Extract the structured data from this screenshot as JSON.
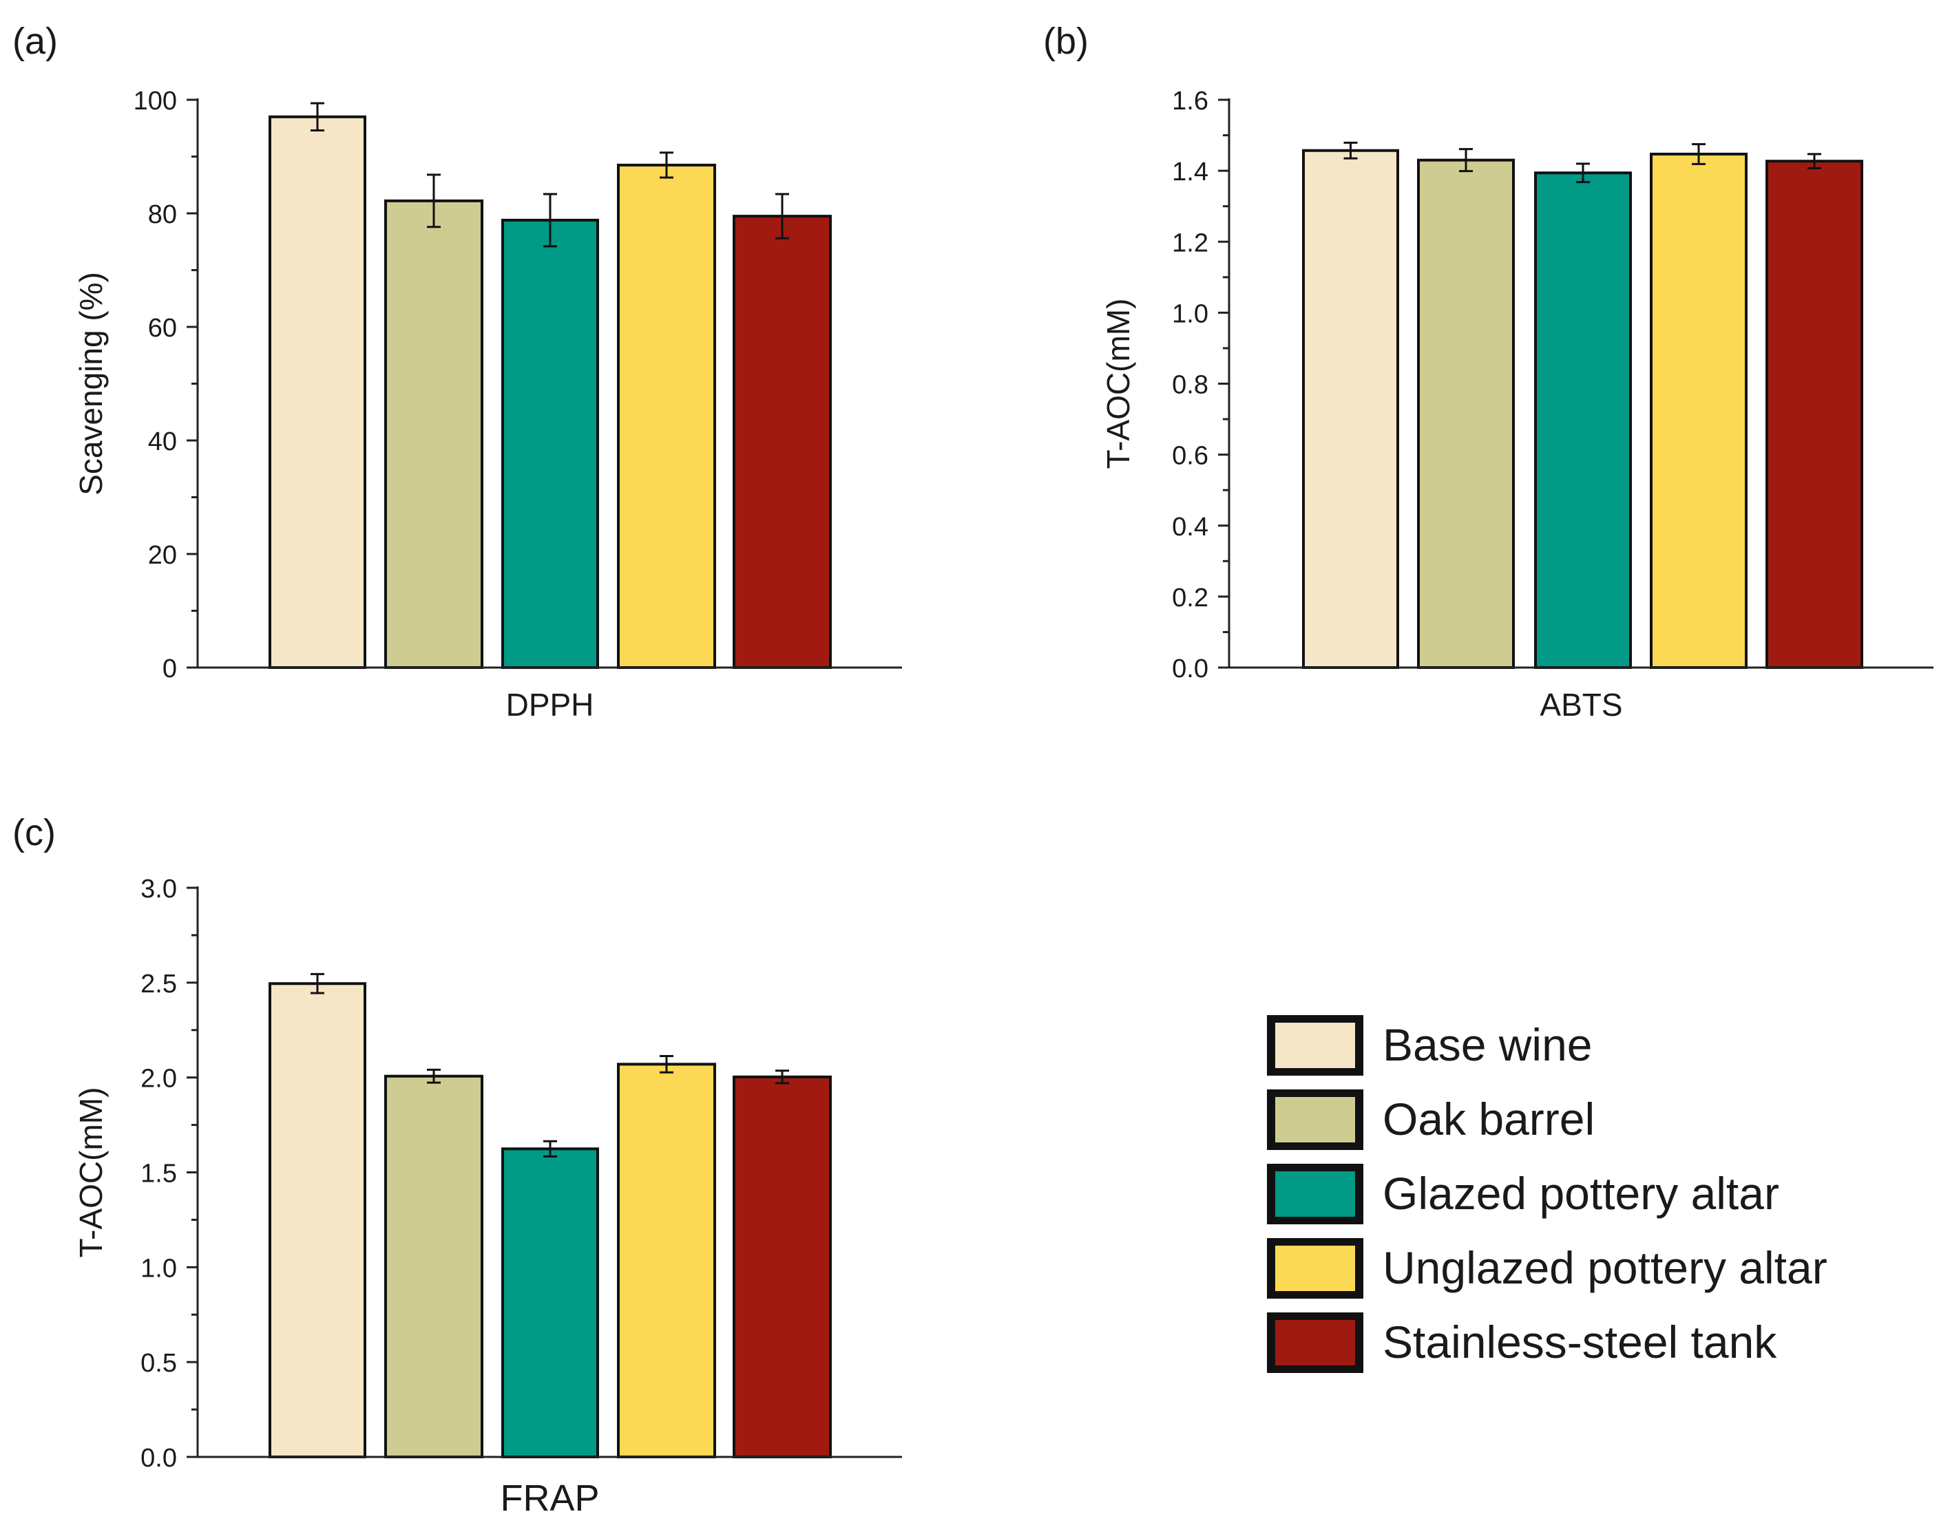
{
  "colors": {
    "axis": "#222222",
    "bar_outline": "#111111",
    "error_bar": "#111111"
  },
  "legend": {
    "placement": "bottom-right",
    "entries": [
      {
        "label": "Base wine",
        "color": "#f4e6c6"
      },
      {
        "label": "Oak barrel",
        "color": "#cfcc92"
      },
      {
        "label": "Glazed pottery altar",
        "color": "#009a86"
      },
      {
        "label": "Unglazed pottery altar",
        "color": "#fcd954"
      },
      {
        "label": "Stainless-steel tank",
        "color": "#a01a12"
      }
    ]
  },
  "chart_data": [
    {
      "type": "bar",
      "panel_label": "(a)",
      "title": "",
      "xlabel": "DPPH",
      "ylabel": "Scavenging (%)",
      "ylim": [
        0,
        100
      ],
      "yticks": [
        0,
        20,
        40,
        60,
        80,
        100
      ],
      "ytick_labels": [
        "0",
        "20",
        "40",
        "60",
        "80",
        "100"
      ],
      "grid": false,
      "categories": [
        "Base wine",
        "Oak barrel",
        "Glazed pottery altar",
        "Unglazed pottery altar",
        "Stainless-steel tank"
      ],
      "values": [
        97.0,
        82.2,
        78.8,
        88.5,
        79.5
      ],
      "errors": [
        2.4,
        4.6,
        4.6,
        2.2,
        3.9
      ]
    },
    {
      "type": "bar",
      "panel_label": "(b)",
      "title": "",
      "xlabel": "ABTS",
      "ylabel": "T-AOC(mM)",
      "ylim": [
        0,
        1.6
      ],
      "yticks": [
        0,
        0.2,
        0.4,
        0.6,
        0.8,
        1.0,
        1.2,
        1.4,
        1.6
      ],
      "ytick_labels": [
        "0.0",
        "0.2",
        "0.4",
        "0.6",
        "0.8",
        "1.0",
        "1.2",
        "1.4",
        "1.6"
      ],
      "grid": false,
      "categories": [
        "Base wine",
        "Oak barrel",
        "Glazed pottery altar",
        "Unglazed pottery altar",
        "Stainless-steel tank"
      ],
      "values": [
        1.457,
        1.43,
        1.394,
        1.447,
        1.427
      ],
      "errors": [
        0.022,
        0.031,
        0.026,
        0.028,
        0.02
      ]
    },
    {
      "type": "bar",
      "panel_label": "(c)",
      "title": "",
      "xlabel": "FRAP",
      "ylabel": "T-AOC(mM)",
      "ylim": [
        0,
        3.0
      ],
      "yticks": [
        0,
        0.5,
        1.0,
        1.5,
        2.0,
        2.5,
        3.0
      ],
      "ytick_labels": [
        "0.0",
        "0.5",
        "1.0",
        "1.5",
        "2.0",
        "2.5",
        "3.0"
      ],
      "grid": false,
      "categories": [
        "Base wine",
        "Oak barrel",
        "Glazed pottery altar",
        "Unglazed pottery altar",
        "Stainless-steel tank"
      ],
      "values": [
        2.495,
        2.007,
        1.624,
        2.07,
        2.003
      ],
      "errors": [
        0.05,
        0.034,
        0.04,
        0.043,
        0.033
      ]
    }
  ]
}
